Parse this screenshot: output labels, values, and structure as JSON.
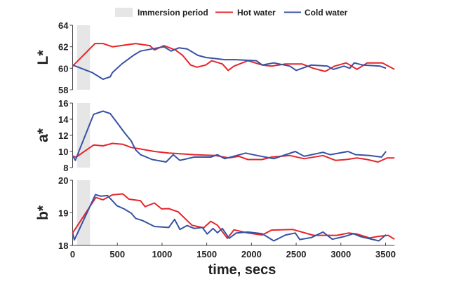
{
  "chart_data": {
    "type": "line",
    "xlabel": "time, secs",
    "xlim": [
      0,
      3600
    ],
    "xticks": [
      "0",
      "500",
      "1000",
      "1500",
      "2000",
      "2500",
      "3000",
      "3500"
    ],
    "legend": {
      "placement": "top",
      "entries": [
        "Immersion period",
        "Hot water",
        "Cold water"
      ]
    },
    "colors": {
      "hot": "#e8242a",
      "cold": "#3652a5",
      "immersion": "#e6e6e6"
    },
    "immersion_period": [
      50,
      195
    ],
    "panels": [
      {
        "ylabel": "L*",
        "ylim": [
          58,
          64
        ],
        "yticks": [
          "58",
          "60",
          "62",
          "64"
        ],
        "series": [
          {
            "name": "Hot water",
            "x": [
              0,
              250,
              340,
              445,
              705,
              865,
              915,
              1020,
              1150,
              1230,
              1320,
              1390,
              1490,
              1555,
              1675,
              1740,
              1805,
              1960,
              2120,
              2225,
              2380,
              2565,
              2690,
              2825,
              2930,
              3060,
              3180,
              3295,
              3465,
              3600
            ],
            "y": [
              60.2,
              62.3,
              62.3,
              62.0,
              62.3,
              62.1,
              61.7,
              62.1,
              61.7,
              61.2,
              60.3,
              60.1,
              60.3,
              60.7,
              60.4,
              59.8,
              60.2,
              60.7,
              60.3,
              60.2,
              60.4,
              60.4,
              60.0,
              59.7,
              60.2,
              60.5,
              59.9,
              60.5,
              60.5,
              59.9
            ]
          },
          {
            "name": "Cold water",
            "x": [
              0,
              220,
              340,
              420,
              445,
              550,
              680,
              760,
              890,
              1020,
              1100,
              1190,
              1280,
              1400,
              1490,
              1595,
              1700,
              1830,
              2055,
              2120,
              2250,
              2430,
              2500,
              2670,
              2850,
              2915,
              3035,
              3100,
              3150,
              3245,
              3440,
              3505
            ],
            "y": [
              60.3,
              59.6,
              58.98,
              59.2,
              59.6,
              60.4,
              61.2,
              61.6,
              61.8,
              62.0,
              61.6,
              61.9,
              61.8,
              61.2,
              61.0,
              60.9,
              60.8,
              60.8,
              60.7,
              60.3,
              60.5,
              60.2,
              59.8,
              60.3,
              60.2,
              59.9,
              60.2,
              60.0,
              60.5,
              60.3,
              60.2,
              60.0
            ]
          }
        ]
      },
      {
        "ylabel": "a*",
        "ylim": [
          8,
          16
        ],
        "yticks": [
          "8",
          "10",
          "12",
          "14",
          "16"
        ],
        "series": [
          {
            "name": "Hot water",
            "x": [
              0,
              40,
              235,
              340,
              445,
              560,
              655,
              760,
              915,
              1075,
              1230,
              1360,
              1595,
              1750,
              1860,
              1960,
              2120,
              2225,
              2430,
              2590,
              2800,
              2940,
              3060,
              3180,
              3295,
              3415,
              3520,
              3600
            ],
            "y": [
              9.4,
              9.3,
              10.8,
              10.7,
              11.0,
              10.9,
              10.5,
              10.3,
              10.0,
              9.8,
              9.7,
              9.6,
              9.5,
              9.2,
              9.4,
              9.0,
              9.0,
              9.3,
              9.5,
              9.1,
              9.5,
              8.9,
              9.0,
              9.2,
              9.0,
              8.7,
              9.2,
              9.2
            ]
          },
          {
            "name": "Cold water",
            "x": [
              0,
              30,
              235,
              340,
              420,
              495,
              575,
              655,
              705,
              760,
              890,
              1045,
              1125,
              1200,
              1360,
              1545,
              1620,
              1700,
              1935,
              2065,
              2250,
              2490,
              2590,
              2800,
              2880,
              3080,
              3165,
              3320,
              3455,
              3505
            ],
            "y": [
              9.5,
              8.9,
              14.6,
              15.0,
              14.7,
              13.6,
              12.4,
              11.3,
              10.2,
              9.6,
              9.0,
              8.7,
              9.6,
              8.9,
              9.3,
              9.3,
              9.6,
              9.1,
              9.8,
              9.5,
              9.1,
              10.0,
              9.4,
              9.9,
              9.6,
              10.0,
              9.6,
              9.5,
              9.3,
              10.0
            ]
          }
        ]
      },
      {
        "ylabel": "b*",
        "ylim": [
          18,
          20
        ],
        "yticks": [
          "18",
          "19",
          "20"
        ],
        "series": [
          {
            "name": "Hot water",
            "x": [
              0,
              260,
              340,
              445,
              560,
              630,
              760,
              810,
              915,
              995,
              1075,
              1180,
              1230,
              1335,
              1465,
              1545,
              1620,
              1730,
              1805,
              1960,
              2120,
              2225,
              2460,
              2695,
              2955,
              3085,
              3180,
              3320,
              3425,
              3530,
              3600
            ],
            "y": [
              18.38,
              19.47,
              19.4,
              19.55,
              19.58,
              19.42,
              19.37,
              19.19,
              19.3,
              19.12,
              19.13,
              19.03,
              18.9,
              18.62,
              18.54,
              18.74,
              18.62,
              18.22,
              18.48,
              18.38,
              18.32,
              18.47,
              18.49,
              18.31,
              18.31,
              18.38,
              18.35,
              18.23,
              18.28,
              18.31,
              18.19
            ]
          },
          {
            "name": "Cold water",
            "x": [
              0,
              20,
              255,
              315,
              390,
              445,
              495,
              575,
              655,
              705,
              785,
              915,
              1075,
              1140,
              1200,
              1280,
              1360,
              1450,
              1505,
              1570,
              1620,
              1675,
              1750,
              1830,
              1960,
              2120,
              2250,
              2380,
              2490,
              2540,
              2670,
              2800,
              2905,
              3035,
              3140,
              3220,
              3425,
              3505
            ],
            "y": [
              18.38,
              18.17,
              19.56,
              19.51,
              19.53,
              19.37,
              19.22,
              19.12,
              18.99,
              18.83,
              18.76,
              18.58,
              18.55,
              18.8,
              18.49,
              18.61,
              18.52,
              18.55,
              18.35,
              18.52,
              18.39,
              18.52,
              18.22,
              18.38,
              18.41,
              18.36,
              18.14,
              18.32,
              18.38,
              18.18,
              18.24,
              18.41,
              18.19,
              18.27,
              18.36,
              18.27,
              18.14,
              18.33
            ]
          }
        ]
      }
    ]
  }
}
